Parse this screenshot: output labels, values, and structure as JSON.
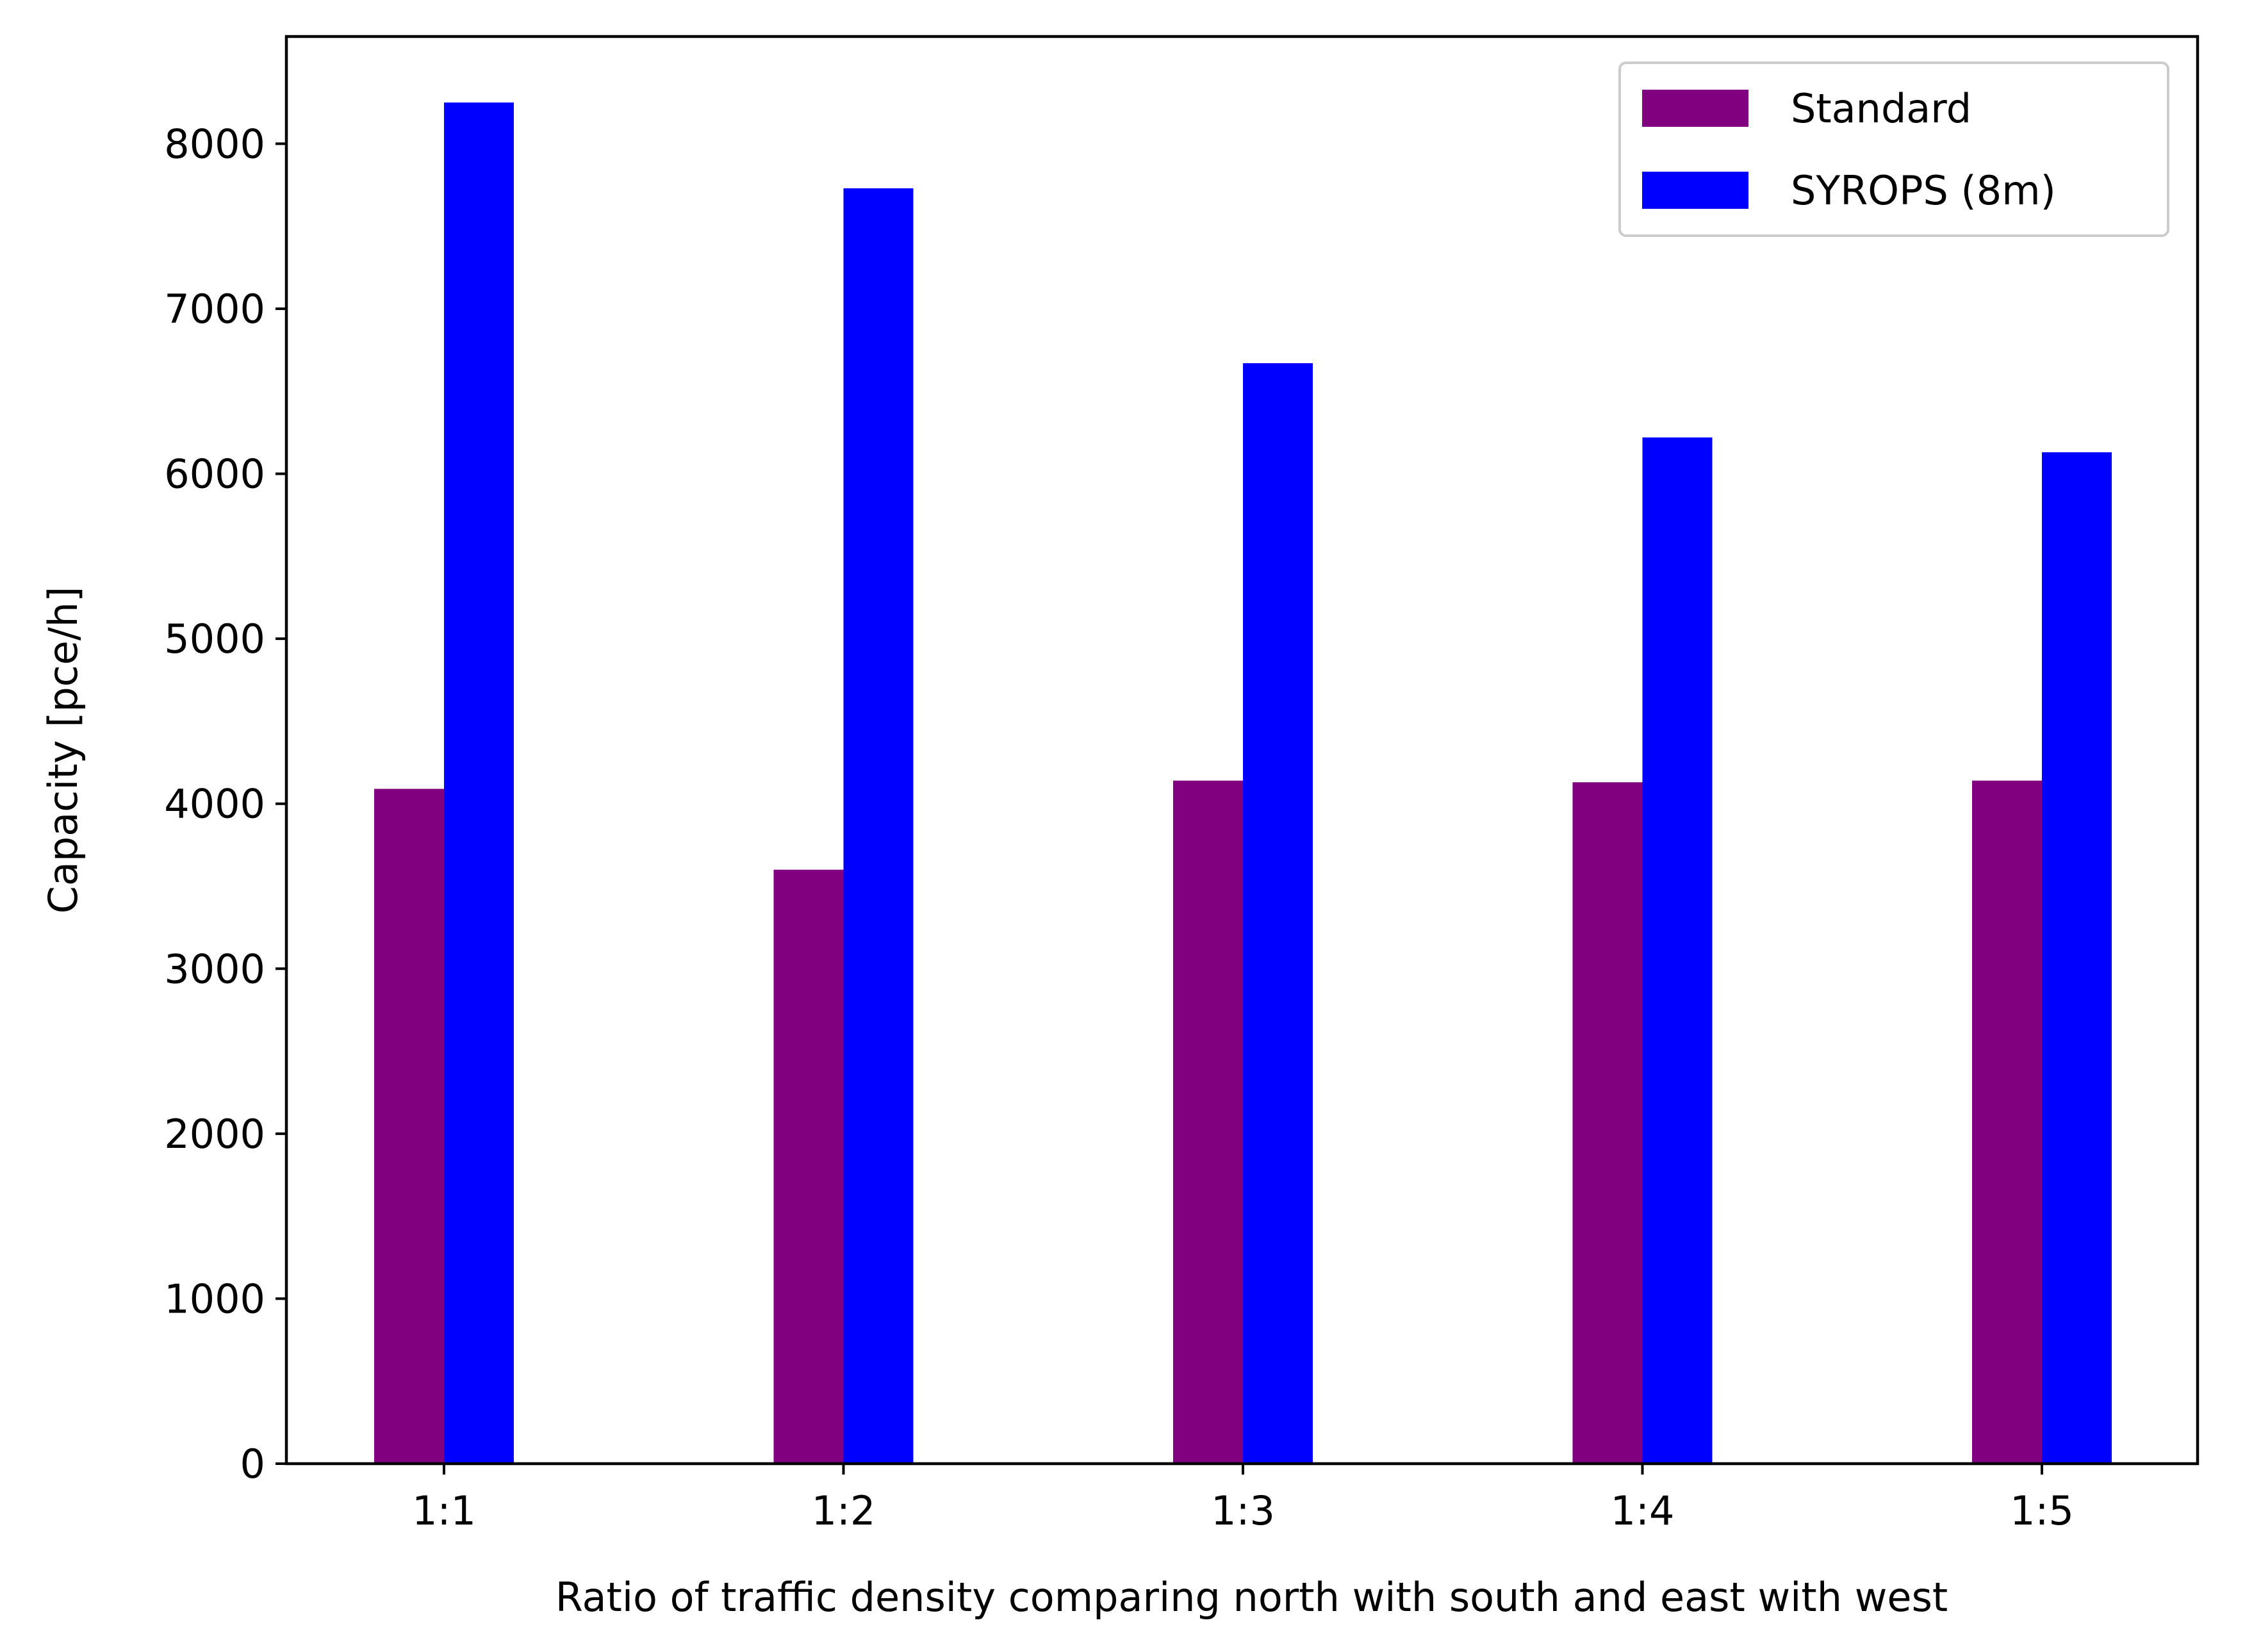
{
  "chart_data": {
    "type": "bar",
    "title": "",
    "xlabel": "Ratio of traffic density comparing north with south and east with west",
    "ylabel": "Capacity [pce/h]",
    "categories": [
      "1:1",
      "1:2",
      "1:3",
      "1:4",
      "1:5"
    ],
    "series": [
      {
        "name": "Standard",
        "color": "#800080",
        "values": [
          4090,
          3600,
          4140,
          4130,
          4140
        ]
      },
      {
        "name": "SYROPS (8m)",
        "color": "#0000ff",
        "values": [
          8250,
          7730,
          6670,
          6220,
          6130
        ]
      }
    ],
    "ylim": [
      0,
      8650
    ],
    "yticks": [
      0,
      1000,
      2000,
      3000,
      4000,
      5000,
      6000,
      7000,
      8000
    ],
    "ytick_labels": [
      "0",
      "1000",
      "2000",
      "3000",
      "4000",
      "5000",
      "6000",
      "7000",
      "8000"
    ],
    "grid": false,
    "legend_position": "top-right"
  }
}
